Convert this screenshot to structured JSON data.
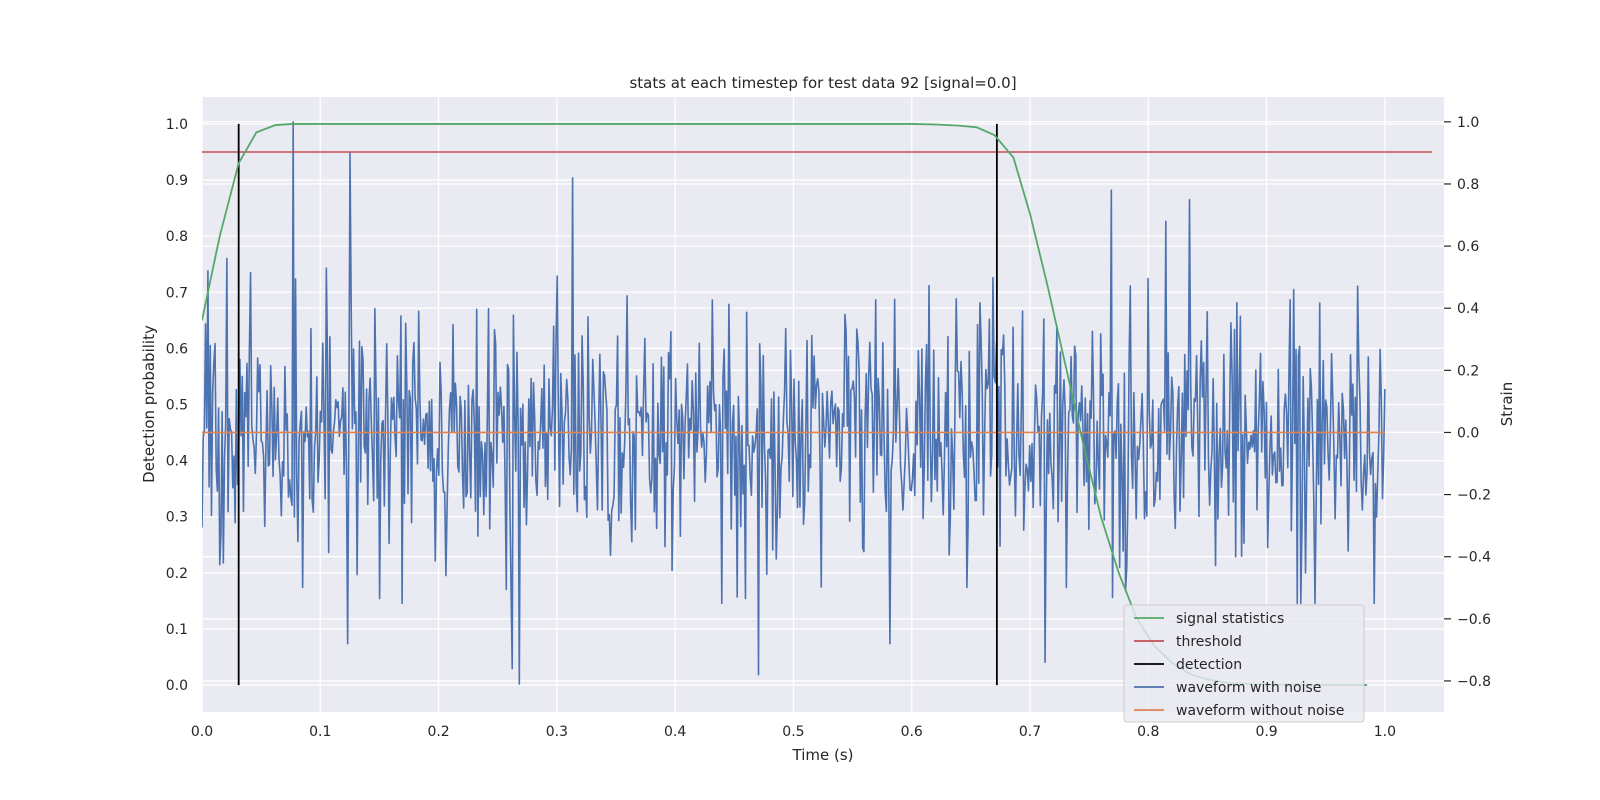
{
  "chart_data": {
    "type": "line",
    "title": "stats at each timestep for test data 92 [signal=0.0]",
    "xlabel": "Time (s)",
    "ylabel": "Detection probability",
    "y2label": "Strain",
    "xlim": [
      0.0,
      1.05
    ],
    "ylim": [
      -0.048,
      1.048
    ],
    "y2lim": [
      -0.9,
      1.08
    ],
    "grid": true,
    "legend_position": "bottom-right",
    "x_ticks": [
      0.0,
      0.1,
      0.2,
      0.3,
      0.4,
      0.5,
      0.6,
      0.7,
      0.8,
      0.9,
      1.0
    ],
    "x_tick_labels": [
      "0.0",
      "0.1",
      "0.2",
      "0.3",
      "0.4",
      "0.5",
      "0.6",
      "0.7",
      "0.8",
      "0.9",
      "1.0"
    ],
    "y_ticks": [
      0.0,
      0.1,
      0.2,
      0.3,
      0.4,
      0.5,
      0.6,
      0.7,
      0.8,
      0.9,
      1.0
    ],
    "y_tick_labels": [
      "0.0",
      "0.1",
      "0.2",
      "0.3",
      "0.4",
      "0.5",
      "0.6",
      "0.7",
      "0.8",
      "0.9",
      "1.0"
    ],
    "y2_ticks": [
      -0.8,
      -0.6,
      -0.4,
      -0.2,
      0.0,
      0.2,
      0.4,
      0.6,
      0.8,
      1.0
    ],
    "y2_tick_labels": [
      "−0.8",
      "−0.6",
      "−0.4",
      "−0.2",
      "0.0",
      "0.2",
      "0.4",
      "0.6",
      "0.8",
      "1.0"
    ],
    "colors": {
      "signal_statistics": "#55a868",
      "threshold": "#c44e52",
      "detection": "#000000",
      "waveform_with_noise": "#4c72b0",
      "waveform_without_noise": "#dd8452",
      "axes_background": "#eaeaf2",
      "grid": "#ffffff"
    },
    "legend": [
      {
        "key": "signal_statistics",
        "label": "signal statistics"
      },
      {
        "key": "threshold",
        "label": "threshold"
      },
      {
        "key": "detection",
        "label": "detection"
      },
      {
        "key": "waveform_with_noise",
        "label": "waveform with noise"
      },
      {
        "key": "waveform_without_noise",
        "label": "waveform without noise"
      }
    ],
    "series": [
      {
        "name": "signal statistics",
        "key": "signal_statistics",
        "axis": "left",
        "x": [
          0.0,
          0.015,
          0.031,
          0.046,
          0.062,
          0.077,
          0.1,
          0.2,
          0.3,
          0.4,
          0.5,
          0.6,
          0.62,
          0.64,
          0.655,
          0.67,
          0.686,
          0.7,
          0.715,
          0.73,
          0.745,
          0.76,
          0.775,
          0.79,
          0.805,
          0.82,
          0.835,
          0.85,
          0.87,
          0.9,
          0.95,
          0.985
        ],
        "values": [
          0.65,
          0.8,
          0.93,
          0.985,
          0.998,
          1.0,
          1.0,
          1.0,
          1.0,
          1.0,
          1.0,
          1.0,
          0.999,
          0.997,
          0.994,
          0.98,
          0.94,
          0.84,
          0.71,
          0.57,
          0.43,
          0.3,
          0.2,
          0.12,
          0.07,
          0.04,
          0.02,
          0.01,
          0.003,
          0.001,
          0.0,
          0.0
        ]
      },
      {
        "name": "threshold",
        "key": "threshold",
        "axis": "left",
        "x": [
          0.0,
          1.04
        ],
        "values": [
          0.95,
          0.95
        ]
      },
      {
        "name": "waveform without noise",
        "key": "waveform_without_noise",
        "axis": "right",
        "x": [
          0.0,
          1.0
        ],
        "values": [
          0.0,
          0.0
        ]
      }
    ],
    "detections": {
      "x": [
        0.031,
        0.672
      ],
      "y_range": [
        0.0,
        1.0
      ]
    },
    "waveform_with_noise": {
      "axis": "right",
      "x_start": 0.0,
      "x_end": 1.0,
      "num_samples": 1000,
      "std": 0.2,
      "min": -0.81,
      "max": 1.0,
      "peaks": [
        {
          "x": 0.005,
          "value": 0.52
        },
        {
          "x": 0.018,
          "value": -0.42
        },
        {
          "x": 0.021,
          "value": 0.56
        },
        {
          "x": 0.077,
          "value": 1.0
        },
        {
          "x": 0.123,
          "value": -0.68
        },
        {
          "x": 0.125,
          "value": 0.9
        },
        {
          "x": 0.262,
          "value": -0.76
        },
        {
          "x": 0.268,
          "value": -0.81
        },
        {
          "x": 0.313,
          "value": 0.82
        },
        {
          "x": 0.47,
          "value": -0.78
        },
        {
          "x": 0.582,
          "value": -0.68
        },
        {
          "x": 0.713,
          "value": -0.74
        },
        {
          "x": 0.769,
          "value": 0.78
        },
        {
          "x": 0.815,
          "value": 0.68
        },
        {
          "x": 0.874,
          "value": -0.4
        }
      ]
    }
  }
}
